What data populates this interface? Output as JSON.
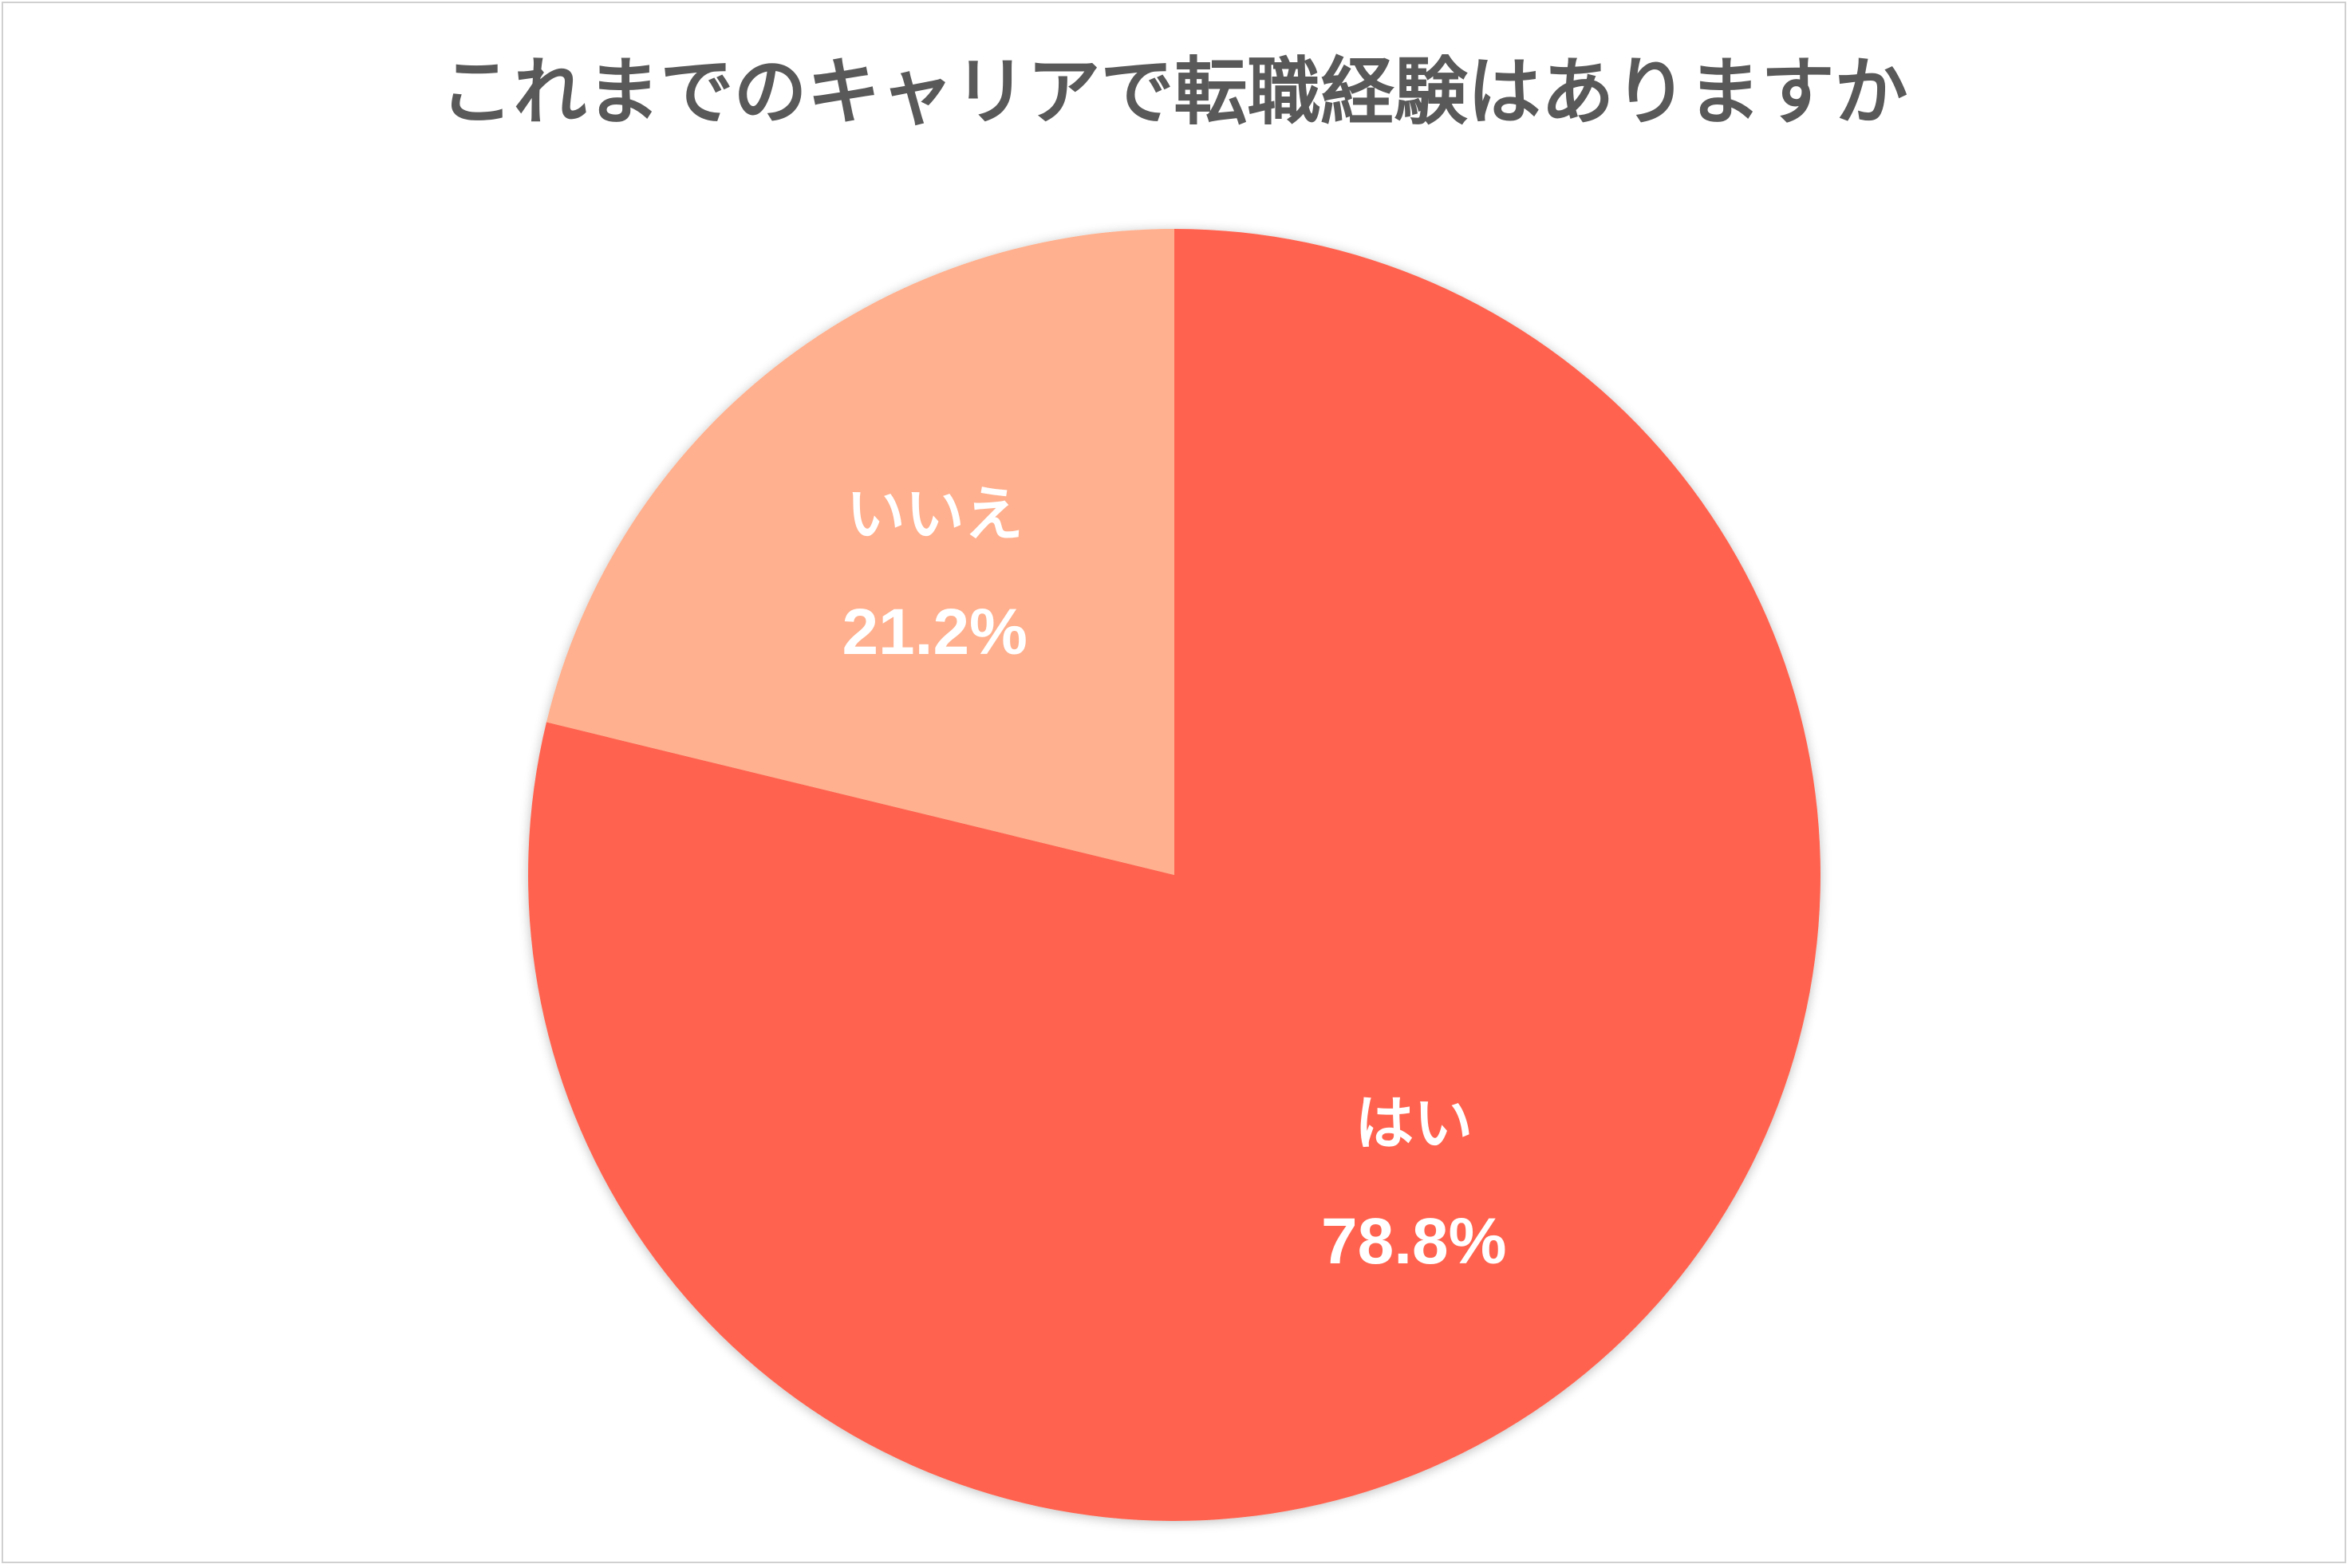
{
  "chart_data": {
    "type": "pie",
    "title": "これまでのキャリアで転職経験はありますか",
    "categories": [
      "はい",
      "いいえ"
    ],
    "values": [
      78.8,
      21.2
    ],
    "value_labels": [
      "78.8%",
      "21.2%"
    ],
    "colors": [
      "#ff6450",
      "#ffb08e"
    ],
    "legend": "none"
  }
}
